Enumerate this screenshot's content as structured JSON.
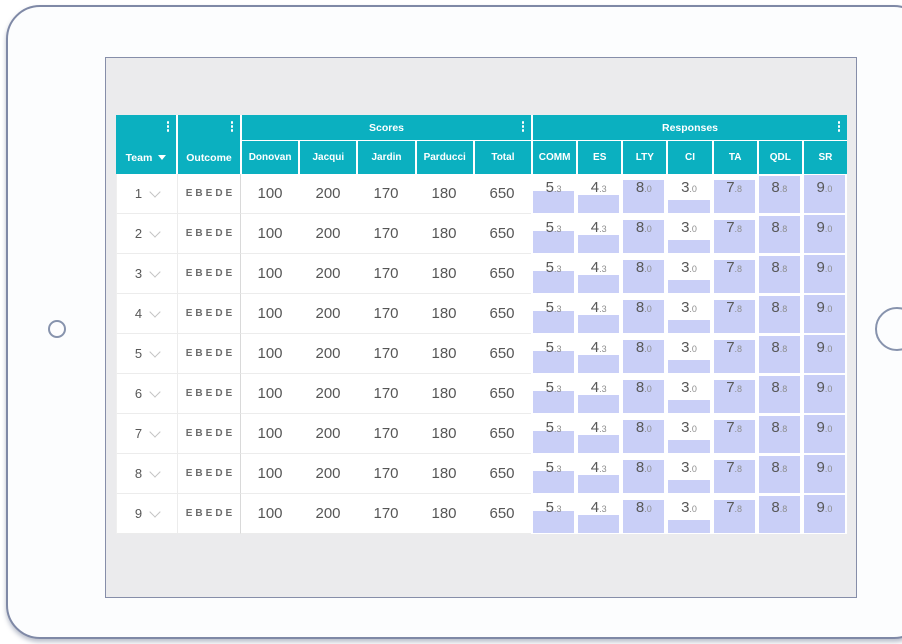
{
  "colors": {
    "header_teal": "#0bb0c0",
    "bar_lavender": "#c9cff7"
  },
  "icons": {
    "column_menu": "kebab-vertical",
    "team_sort": "triangle-down",
    "row_expand": "chevron-down",
    "bezel_left": "camera-circle",
    "bezel_right": "home-button-circle"
  },
  "table": {
    "team_column": {
      "label": "Team"
    },
    "outcome_column": {
      "label": "Outcome"
    },
    "groups": [
      {
        "label": "Scores",
        "columns": [
          "Donovan",
          "Jacqui",
          "Jardin",
          "Parducci",
          "Total"
        ]
      },
      {
        "label": "Responses",
        "columns": [
          "COMM",
          "ES",
          "LTY",
          "CI",
          "TA",
          "QDL",
          "SR"
        ]
      }
    ],
    "rows": [
      {
        "team": "1",
        "outcome": "EBEDE",
        "scores": [
          "100",
          "200",
          "170",
          "180",
          "650"
        ],
        "responses": [
          5.3,
          4.3,
          8.0,
          3.0,
          7.8,
          8.8,
          9.0
        ]
      },
      {
        "team": "2",
        "outcome": "EBEDE",
        "scores": [
          "100",
          "200",
          "170",
          "180",
          "650"
        ],
        "responses": [
          5.3,
          4.3,
          8.0,
          3.0,
          7.8,
          8.8,
          9.0
        ]
      },
      {
        "team": "3",
        "outcome": "EBEDE",
        "scores": [
          "100",
          "200",
          "170",
          "180",
          "650"
        ],
        "responses": [
          5.3,
          4.3,
          8.0,
          3.0,
          7.8,
          8.8,
          9.0
        ]
      },
      {
        "team": "4",
        "outcome": "EBEDE",
        "scores": [
          "100",
          "200",
          "170",
          "180",
          "650"
        ],
        "responses": [
          5.3,
          4.3,
          8.0,
          3.0,
          7.8,
          8.8,
          9.0
        ]
      },
      {
        "team": "5",
        "outcome": "EBEDE",
        "scores": [
          "100",
          "200",
          "170",
          "180",
          "650"
        ],
        "responses": [
          5.3,
          4.3,
          8.0,
          3.0,
          7.8,
          8.8,
          9.0
        ]
      },
      {
        "team": "6",
        "outcome": "EBEDE",
        "scores": [
          "100",
          "200",
          "170",
          "180",
          "650"
        ],
        "responses": [
          5.3,
          4.3,
          8.0,
          3.0,
          7.8,
          8.8,
          9.0
        ]
      },
      {
        "team": "7",
        "outcome": "EBEDE",
        "scores": [
          "100",
          "200",
          "170",
          "180",
          "650"
        ],
        "responses": [
          5.3,
          4.3,
          8.0,
          3.0,
          7.8,
          8.8,
          9.0
        ]
      },
      {
        "team": "8",
        "outcome": "EBEDE",
        "scores": [
          "100",
          "200",
          "170",
          "180",
          "650"
        ],
        "responses": [
          5.3,
          4.3,
          8.0,
          3.0,
          7.8,
          8.8,
          9.0
        ]
      },
      {
        "team": "9",
        "outcome": "EBEDE",
        "scores": [
          "100",
          "200",
          "170",
          "180",
          "650"
        ],
        "responses": [
          5.3,
          4.3,
          8.0,
          3.0,
          7.8,
          8.8,
          9.0
        ]
      }
    ]
  }
}
